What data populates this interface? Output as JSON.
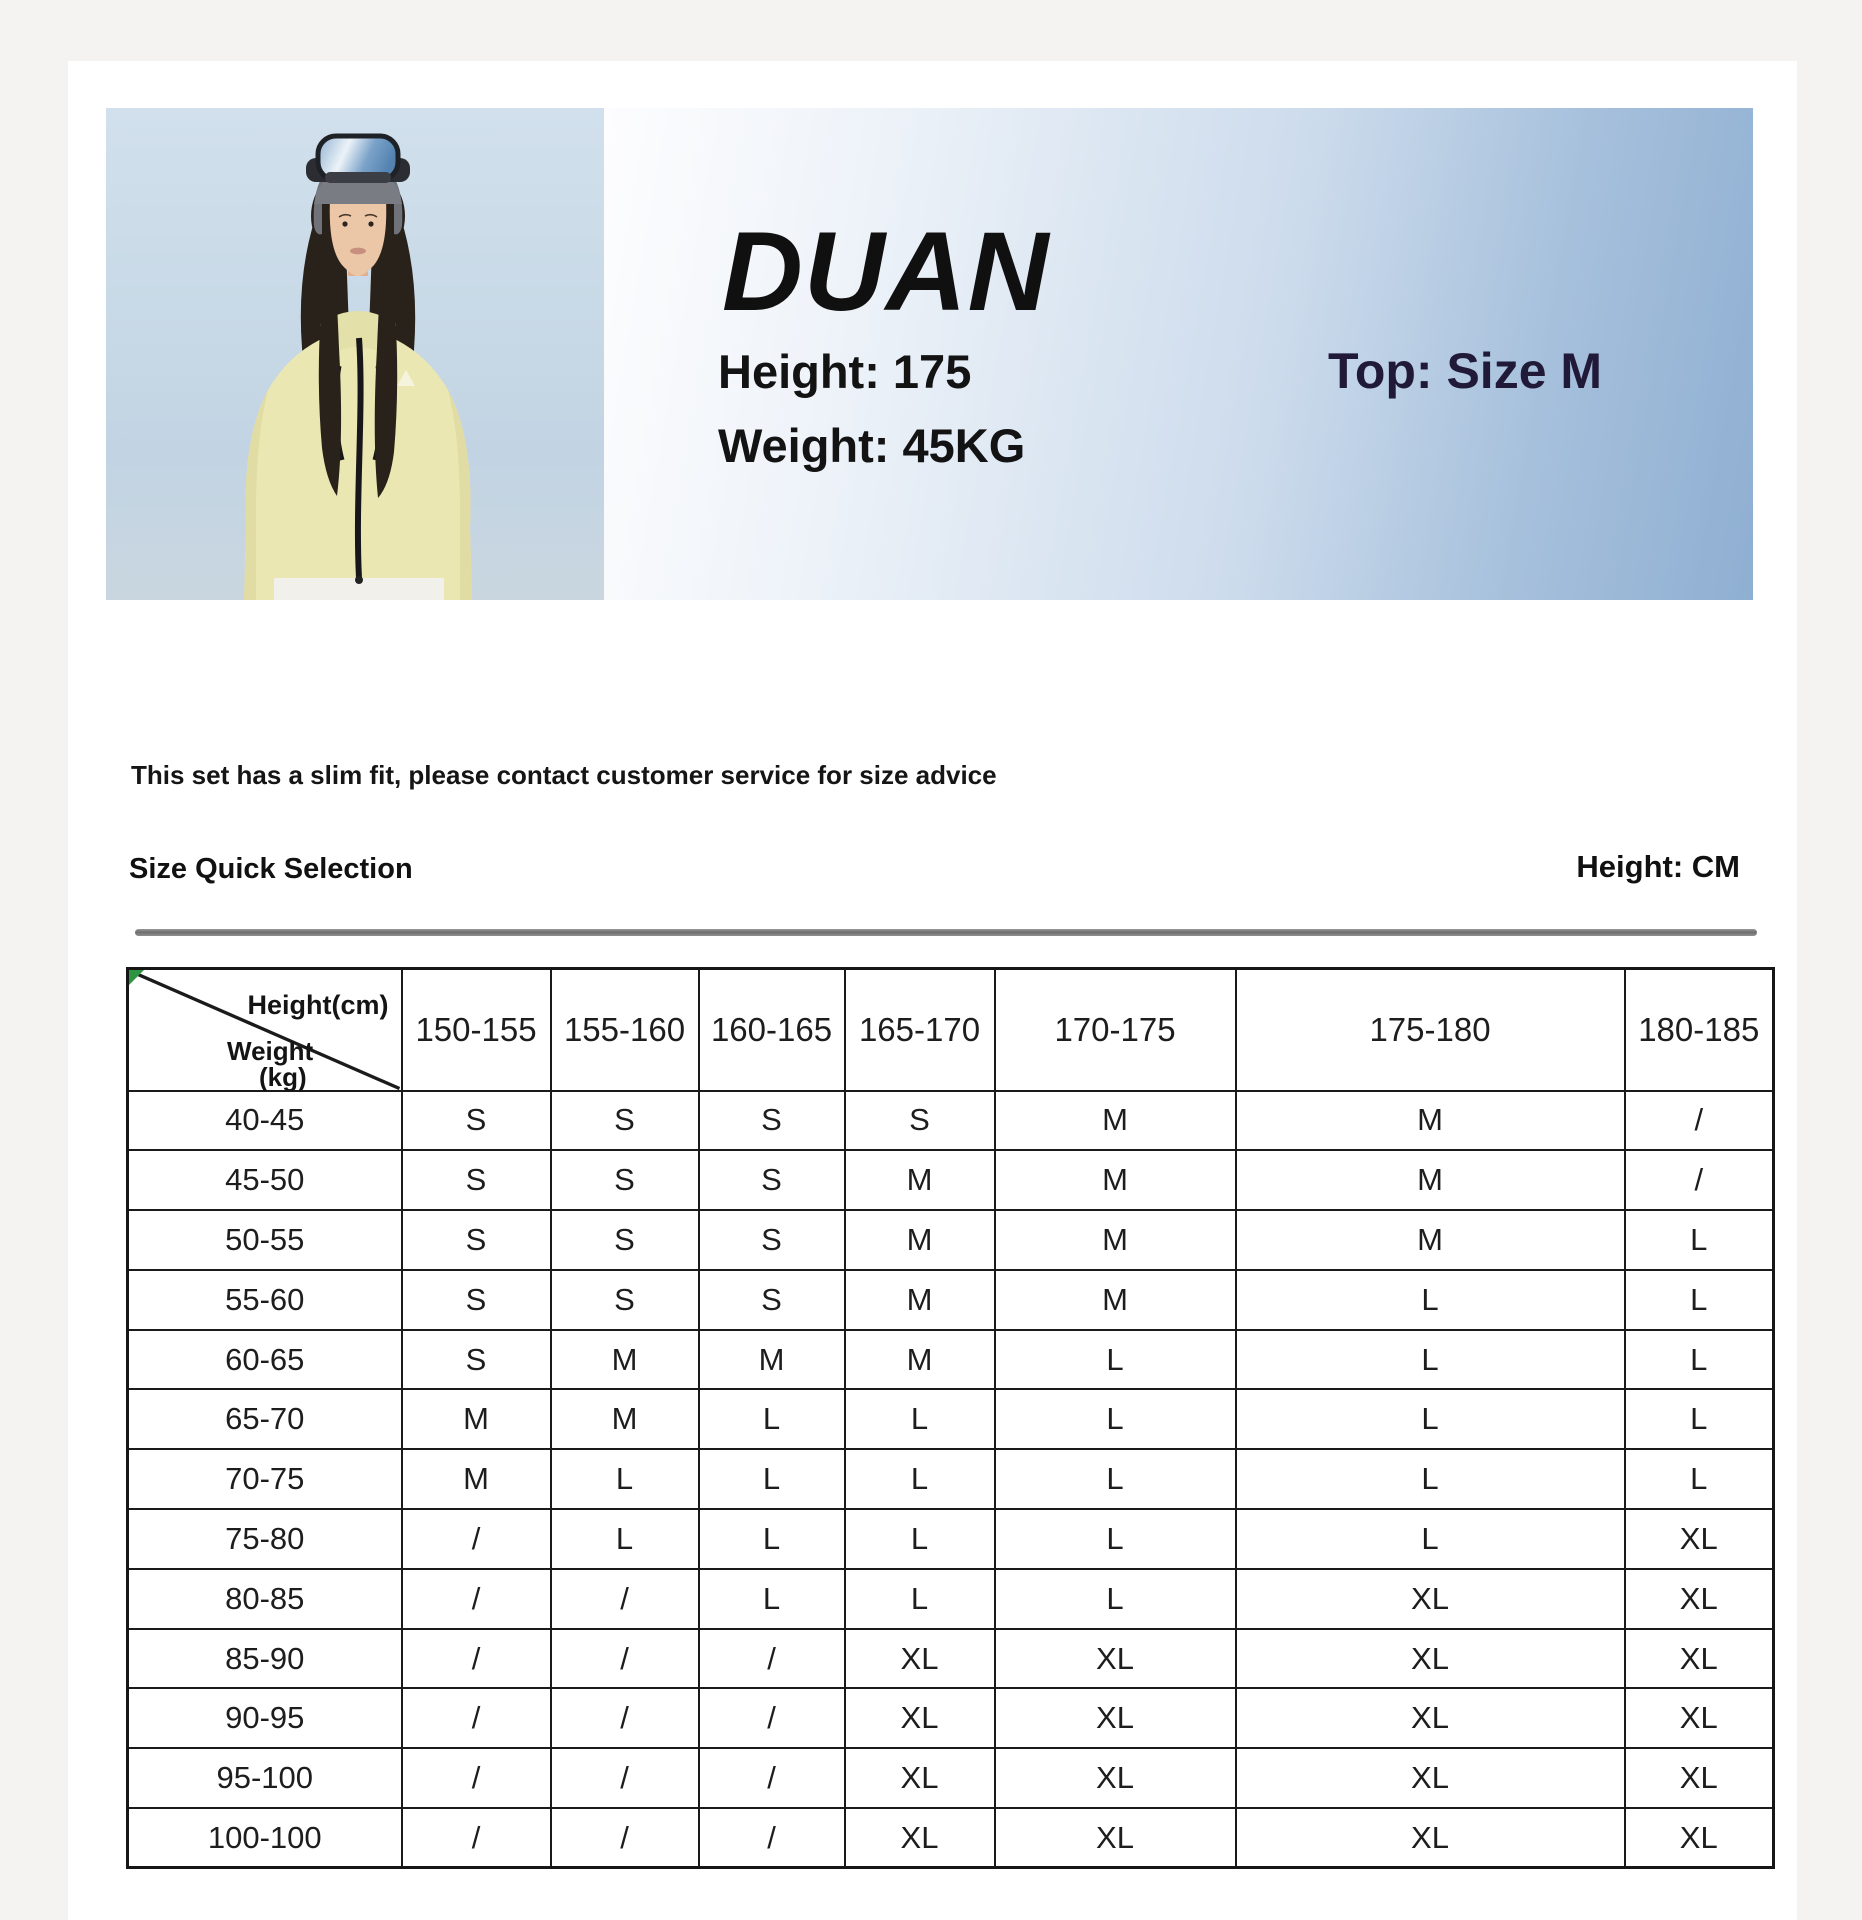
{
  "banner": {
    "title": "DUAN",
    "height_line": "Height: 175",
    "weight_line": "Weight: 45KG",
    "top_size": "Top: Size M"
  },
  "note": "This set has a slim fit, please contact customer service for size advice",
  "section": {
    "title": "Size Quick Selection",
    "unit": "Height: CM"
  },
  "size_table": {
    "corner": {
      "axis1": "Height(cm)",
      "axis2_line1": "Weight",
      "axis2_line2": "(kg)"
    },
    "columns": [
      "150-155",
      "155-160",
      "160-165",
      "165-170",
      "170-175",
      "175-180",
      "180-185"
    ],
    "rows": [
      {
        "weight": "40-45",
        "sizes": [
          "S",
          "S",
          "S",
          "S",
          "M",
          "M",
          "/"
        ]
      },
      {
        "weight": "45-50",
        "sizes": [
          "S",
          "S",
          "S",
          "M",
          "M",
          "M",
          "/"
        ]
      },
      {
        "weight": "50-55",
        "sizes": [
          "S",
          "S",
          "S",
          "M",
          "M",
          "M",
          "L"
        ]
      },
      {
        "weight": "55-60",
        "sizes": [
          "S",
          "S",
          "S",
          "M",
          "M",
          "L",
          "L"
        ]
      },
      {
        "weight": "60-65",
        "sizes": [
          "S",
          "M",
          "M",
          "M",
          "L",
          "L",
          "L"
        ]
      },
      {
        "weight": "65-70",
        "sizes": [
          "M",
          "M",
          "L",
          "L",
          "L",
          "L",
          "L"
        ]
      },
      {
        "weight": "70-75",
        "sizes": [
          "M",
          "L",
          "L",
          "L",
          "L",
          "L",
          "L"
        ]
      },
      {
        "weight": "75-80",
        "sizes": [
          "/",
          "L",
          "L",
          "L",
          "L",
          "L",
          "XL"
        ]
      },
      {
        "weight": "80-85",
        "sizes": [
          "/",
          "/",
          "L",
          "L",
          "L",
          "XL",
          "XL"
        ]
      },
      {
        "weight": "85-90",
        "sizes": [
          "/",
          "/",
          "/",
          "XL",
          "XL",
          "XL",
          "XL"
        ]
      },
      {
        "weight": "90-95",
        "sizes": [
          "/",
          "/",
          "/",
          "XL",
          "XL",
          "XL",
          "XL"
        ]
      },
      {
        "weight": "95-100",
        "sizes": [
          "/",
          "/",
          "/",
          "XL",
          "XL",
          "XL",
          "XL"
        ]
      },
      {
        "weight": "100-100",
        "sizes": [
          "/",
          "/",
          "/",
          "XL",
          "XL",
          "XL",
          "XL"
        ]
      }
    ]
  },
  "colors": {
    "page_bg": "#f4f3f1",
    "card_bg": "#ffffff",
    "banner_blue": "#8fafd2",
    "top_size_text": "#201a38",
    "jacket_yellow": "#ebe7b2",
    "table_border": "#1a1a1a",
    "divider_gray": "#6e6e6e",
    "corner_marker_green": "#2e9342"
  }
}
